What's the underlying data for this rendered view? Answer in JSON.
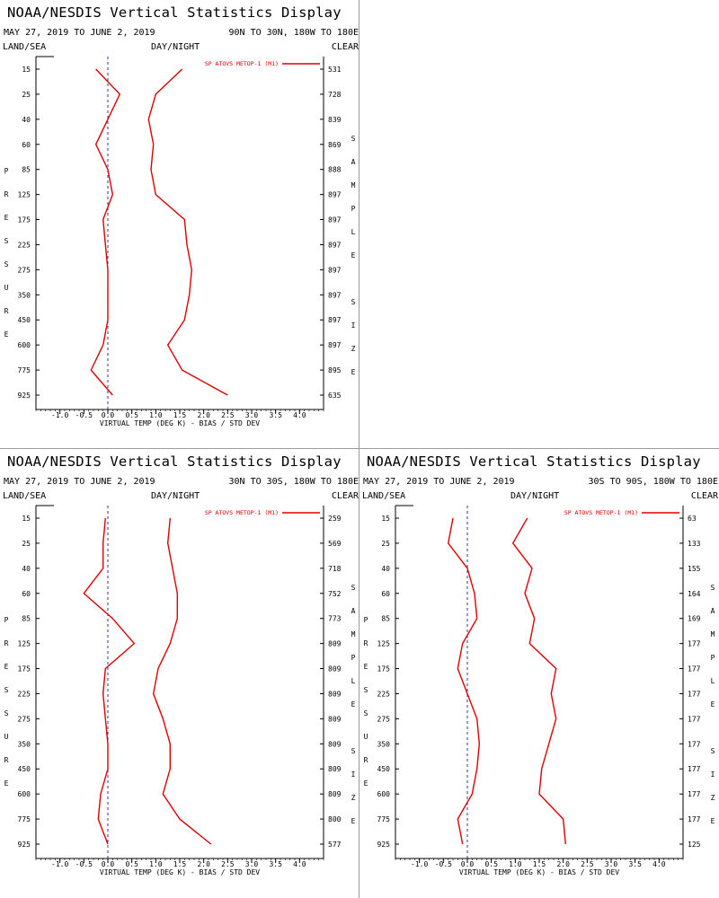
{
  "colors": {
    "series": "#dd0000",
    "zero_line": "#3333aa",
    "axis": "#000000",
    "divider": "#9a9a9a"
  },
  "labels": {
    "land_sea": "LAND/SEA",
    "day_night": "DAY/NIGHT",
    "clear": "CLEAR",
    "pressure_vertical": "PRESSURE",
    "sample_size_vertical": "SAMPLE SIZE"
  },
  "chart_data": [
    {
      "type": "line",
      "title": "NOAA/NESDIS Vertical Statistics Display",
      "date_range": "MAY 27, 2019 TO JUNE 2, 2019",
      "region": "90N TO 30N, 180W TO 180E",
      "legend": "SP ATOVS METOP-1 (M1)",
      "legend_placement": "top-right",
      "xlabel": "VIRTUAL TEMP (DEG K) - BIAS / STD DEV",
      "xlim": [
        -1.5,
        4.5
      ],
      "x_ticks": [
        "-1.0",
        "-0.5",
        "0.0",
        "0.5",
        "1.0",
        "1.5",
        "2.0",
        "2.5",
        "3.0",
        "3.5",
        "4.0"
      ],
      "pressure_levels": [
        "15",
        "25",
        "40",
        "60",
        "85",
        "125",
        "175",
        "225",
        "275",
        "350",
        "450",
        "600",
        "775",
        "925"
      ],
      "sample_size": [
        "531",
        "728",
        "839",
        "869",
        "888",
        "897",
        "897",
        "897",
        "897",
        "897",
        "897",
        "897",
        "895",
        "635"
      ],
      "series": [
        {
          "values": [
            -0.25,
            0.25,
            0.0,
            -0.25,
            0.0,
            0.1,
            -0.1,
            -0.05,
            0.0,
            0.0,
            0.0,
            -0.1,
            -0.35,
            0.1
          ]
        },
        {
          "values": [
            1.55,
            1.0,
            0.85,
            0.95,
            0.9,
            1.0,
            1.6,
            1.65,
            1.75,
            1.7,
            1.6,
            1.25,
            1.55,
            2.5
          ]
        }
      ]
    },
    {
      "type": "line",
      "title": "NOAA/NESDIS Vertical Statistics Display",
      "date_range": "MAY 27, 2019 TO JUNE 2, 2019",
      "region": "30N TO 30S, 180W TO 180E",
      "legend": "SP ATOVS METOP-1 (M1)",
      "legend_placement": "top-right",
      "xlabel": "VIRTUAL TEMP (DEG K) - BIAS / STD DEV",
      "xlim": [
        -1.5,
        4.5
      ],
      "x_ticks": [
        "-1.0",
        "-0.5",
        "0.0",
        "0.5",
        "1.0",
        "1.5",
        "2.0",
        "2.5",
        "3.0",
        "3.5",
        "4.0"
      ],
      "pressure_levels": [
        "15",
        "25",
        "40",
        "60",
        "85",
        "125",
        "175",
        "225",
        "275",
        "350",
        "450",
        "600",
        "775",
        "925"
      ],
      "sample_size": [
        "259",
        "569",
        "718",
        "752",
        "773",
        "809",
        "809",
        "809",
        "809",
        "809",
        "809",
        "809",
        "800",
        "577"
      ],
      "series": [
        {
          "values": [
            -0.05,
            -0.1,
            -0.1,
            -0.5,
            0.1,
            0.55,
            -0.05,
            -0.1,
            -0.05,
            0.0,
            0.0,
            -0.15,
            -0.2,
            0.0
          ]
        },
        {
          "values": [
            1.3,
            1.25,
            1.35,
            1.45,
            1.45,
            1.3,
            1.05,
            0.95,
            1.15,
            1.3,
            1.3,
            1.15,
            1.5,
            2.15
          ]
        }
      ]
    },
    {
      "type": "line",
      "title": "NOAA/NESDIS Vertical Statistics Display",
      "date_range": "MAY 27, 2019 TO JUNE 2, 2019",
      "region": "30S TO 90S, 180W TO 180E",
      "legend": "SP ATOVS METOP-1 (M1)",
      "legend_placement": "top-right",
      "xlabel": "VIRTUAL TEMP (DEG K) - BIAS / STD DEV",
      "xlim": [
        -1.5,
        4.5
      ],
      "x_ticks": [
        "-1.0",
        "-0.5",
        "0.0",
        "0.5",
        "1.0",
        "1.5",
        "2.0",
        "2.5",
        "3.0",
        "3.5",
        "4.0"
      ],
      "pressure_levels": [
        "15",
        "25",
        "40",
        "60",
        "85",
        "125",
        "175",
        "225",
        "275",
        "350",
        "450",
        "600",
        "775",
        "925"
      ],
      "sample_size": [
        "63",
        "133",
        "155",
        "164",
        "169",
        "177",
        "177",
        "177",
        "177",
        "177",
        "177",
        "177",
        "177",
        "125"
      ],
      "series": [
        {
          "values": [
            -0.3,
            -0.4,
            0.0,
            0.15,
            0.2,
            -0.1,
            -0.2,
            0.0,
            0.2,
            0.25,
            0.2,
            0.1,
            -0.2,
            -0.1
          ]
        },
        {
          "values": [
            1.25,
            0.95,
            1.35,
            1.2,
            1.4,
            1.3,
            1.85,
            1.75,
            1.85,
            1.7,
            1.55,
            1.5,
            2.0,
            2.05
          ]
        }
      ]
    }
  ]
}
